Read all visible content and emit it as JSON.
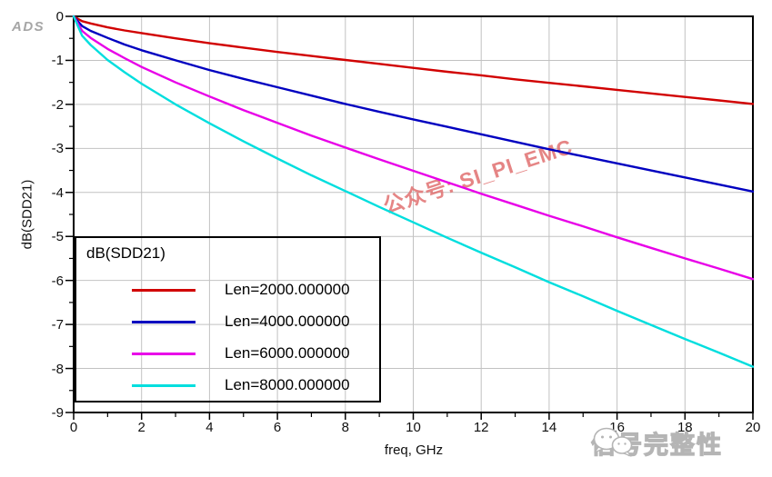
{
  "watermarks": {
    "ads_logo": "ADS",
    "diagonal": "公众号: SI_PI_EMC",
    "brand": "信号完整性"
  },
  "axes": {
    "x": {
      "label": "freq, GHz",
      "min": 0,
      "max": 20,
      "major_tick_step": 2,
      "minor_tick_step": 1,
      "tick_labels": [
        "0",
        "2",
        "4",
        "6",
        "8",
        "10",
        "12",
        "14",
        "16",
        "18",
        "20"
      ]
    },
    "y": {
      "label": "dB(SDD21)",
      "min": -9,
      "max": 0,
      "major_tick_step": 1,
      "minor_tick_step": 0.5,
      "tick_labels": [
        "0",
        "-1",
        "-2",
        "-3",
        "-4",
        "-5",
        "-6",
        "-7",
        "-8",
        "-9"
      ]
    }
  },
  "legend": {
    "title": "dB(SDD21)",
    "entries": [
      {
        "label": "Len=2000.000000",
        "color": "#d10000"
      },
      {
        "label": "Len=4000.000000",
        "color": "#0000c0"
      },
      {
        "label": "Len=6000.000000",
        "color": "#e800e8"
      },
      {
        "label": "Len=8000.000000",
        "color": "#00dede"
      }
    ]
  },
  "colors": {
    "grid": "#c2c2c2",
    "axis": "#000000",
    "diagonal_watermark": "#e17070",
    "gray_watermark": "#b5b5b5"
  },
  "chart_data": {
    "type": "line",
    "title": "",
    "xlabel": "freq, GHz",
    "ylabel": "dB(SDD21)",
    "xlim": [
      0,
      20
    ],
    "ylim": [
      -9,
      0
    ],
    "grid": true,
    "legend_position": "bottom-left",
    "x": [
      0,
      0.25,
      0.5,
      1,
      1.5,
      2,
      3,
      4,
      5,
      6,
      7,
      8,
      9,
      10,
      11,
      12,
      13,
      14,
      15,
      16,
      17,
      18,
      19,
      20
    ],
    "series": [
      {
        "name": "Len=2000.000000",
        "color": "#d10000",
        "values": [
          0,
          -0.11,
          -0.16,
          -0.25,
          -0.32,
          -0.38,
          -0.5,
          -0.61,
          -0.71,
          -0.81,
          -0.9,
          -0.99,
          -1.08,
          -1.17,
          -1.26,
          -1.34,
          -1.43,
          -1.51,
          -1.59,
          -1.67,
          -1.75,
          -1.83,
          -1.91,
          -1.99
        ]
      },
      {
        "name": "Len=4000.000000",
        "color": "#0000c0",
        "values": [
          0,
          -0.22,
          -0.33,
          -0.49,
          -0.64,
          -0.77,
          -1.0,
          -1.22,
          -1.42,
          -1.61,
          -1.8,
          -1.99,
          -2.17,
          -2.34,
          -2.51,
          -2.68,
          -2.85,
          -3.02,
          -3.18,
          -3.34,
          -3.5,
          -3.66,
          -3.82,
          -3.98
        ]
      },
      {
        "name": "Len=6000.000000",
        "color": "#e800e8",
        "values": [
          0,
          -0.33,
          -0.49,
          -0.74,
          -0.95,
          -1.15,
          -1.5,
          -1.82,
          -2.13,
          -2.42,
          -2.71,
          -2.98,
          -3.25,
          -3.51,
          -3.77,
          -4.03,
          -4.28,
          -4.53,
          -4.77,
          -5.02,
          -5.26,
          -5.5,
          -5.73,
          -5.97
        ]
      },
      {
        "name": "Len=8000.000000",
        "color": "#00dede",
        "values": [
          0,
          -0.44,
          -0.65,
          -0.99,
          -1.27,
          -1.53,
          -2.0,
          -2.43,
          -2.84,
          -3.23,
          -3.61,
          -3.97,
          -4.33,
          -4.68,
          -5.03,
          -5.37,
          -5.7,
          -6.04,
          -6.36,
          -6.69,
          -7.01,
          -7.33,
          -7.64,
          -7.96
        ]
      }
    ]
  }
}
